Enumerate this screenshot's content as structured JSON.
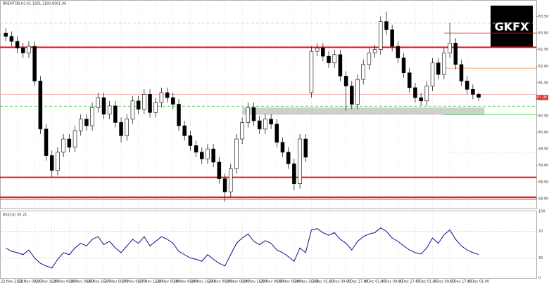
{
  "chart_data": {
    "type": "candlestick",
    "symbol": "BRENTOB,H1",
    "logo": "GKFX",
    "up_color": "#ffffff",
    "down_color": "#000000",
    "grid": true,
    "open": [
      63.0,
      62.9,
      62.75,
      62.55,
      62.4,
      62.6,
      61.55,
      60.1,
      59.3,
      58.85,
      59.4,
      59.8,
      59.55,
      60.05,
      60.4,
      60.2,
      60.75,
      61.05,
      60.55,
      60.8,
      60.3,
      59.9,
      60.4,
      60.95,
      60.7,
      61.15,
      60.6,
      60.9,
      61.2,
      61.05,
      60.85,
      60.2,
      59.9,
      59.6,
      59.4,
      59.2,
      59.5,
      59.1,
      58.6,
      58.2,
      58.9,
      59.8,
      60.3,
      60.75,
      60.35,
      60.1,
      60.4,
      60.25,
      59.7,
      59.4,
      59.05,
      58.45,
      59.8,
      61.2,
      62.45,
      62.55,
      62.3,
      62.1,
      62.35,
      61.7,
      61.4,
      60.85,
      61.6,
      62.05,
      62.4,
      62.5,
      63.35,
      63.1,
      62.6,
      62.25,
      61.8,
      61.35,
      61.05,
      60.95,
      61.4,
      62.1,
      61.75,
      62.4,
      62.7,
      62.05,
      61.55,
      61.3,
      61.15
    ],
    "high": [
      63.15,
      63.05,
      62.9,
      62.7,
      62.75,
      62.75,
      61.7,
      60.25,
      59.45,
      59.55,
      59.95,
      59.95,
      60.2,
      60.55,
      60.55,
      60.9,
      61.2,
      61.2,
      60.95,
      60.95,
      60.45,
      60.55,
      61.1,
      61.1,
      61.3,
      61.3,
      61.05,
      61.35,
      61.35,
      61.2,
      61.0,
      60.35,
      60.05,
      59.75,
      59.55,
      59.65,
      59.65,
      59.25,
      58.75,
      59.05,
      59.95,
      60.45,
      60.9,
      60.9,
      60.5,
      60.55,
      60.55,
      60.4,
      59.85,
      59.55,
      59.2,
      59.95,
      59.95,
      62.6,
      62.7,
      62.7,
      62.45,
      62.5,
      62.5,
      61.85,
      61.55,
      61.75,
      62.2,
      62.55,
      62.65,
      63.5,
      63.65,
      63.25,
      62.75,
      62.4,
      61.95,
      61.5,
      61.2,
      61.55,
      62.25,
      62.25,
      62.55,
      63.3,
      62.85,
      62.2,
      61.7,
      61.45,
      61.21
    ],
    "low": [
      62.75,
      62.6,
      62.4,
      62.25,
      62.25,
      61.4,
      59.95,
      59.15,
      58.65,
      58.7,
      59.25,
      59.4,
      59.4,
      59.9,
      60.05,
      60.05,
      60.6,
      60.4,
      60.4,
      60.15,
      59.7,
      59.75,
      60.25,
      60.55,
      60.55,
      60.45,
      60.45,
      60.75,
      60.9,
      60.7,
      60.05,
      59.75,
      59.45,
      59.25,
      59.05,
      59.05,
      58.95,
      58.45,
      57.9,
      58.05,
      58.75,
      59.65,
      60.15,
      60.2,
      59.95,
      59.95,
      60.1,
      59.55,
      59.25,
      58.9,
      58.25,
      58.3,
      59.1,
      61.05,
      62.3,
      62.15,
      61.95,
      61.95,
      61.55,
      60.65,
      60.7,
      60.7,
      61.45,
      61.9,
      62.25,
      62.35,
      62.95,
      62.45,
      62.1,
      61.65,
      61.2,
      60.9,
      60.8,
      60.8,
      61.25,
      61.6,
      61.6,
      62.25,
      61.9,
      61.4,
      61.15,
      61.0,
      60.95
    ],
    "close": [
      62.9,
      62.75,
      62.55,
      62.4,
      62.6,
      61.55,
      60.1,
      59.3,
      58.85,
      59.4,
      59.8,
      59.55,
      60.05,
      60.4,
      60.2,
      60.75,
      61.05,
      60.55,
      60.8,
      60.3,
      59.9,
      60.4,
      60.95,
      60.7,
      61.15,
      60.6,
      60.9,
      61.2,
      61.05,
      60.85,
      60.2,
      59.9,
      59.6,
      59.4,
      59.2,
      59.5,
      59.1,
      58.6,
      58.2,
      58.9,
      59.8,
      60.3,
      60.75,
      60.35,
      60.1,
      60.4,
      60.25,
      59.7,
      59.4,
      59.05,
      58.45,
      59.8,
      59.25,
      62.45,
      62.55,
      62.3,
      62.1,
      62.35,
      61.7,
      61.4,
      60.85,
      61.6,
      62.05,
      62.4,
      62.5,
      63.35,
      63.1,
      62.6,
      62.25,
      61.8,
      61.35,
      61.05,
      60.95,
      61.4,
      62.1,
      61.75,
      62.4,
      62.7,
      62.05,
      61.55,
      61.3,
      61.15,
      61.06
    ],
    "xlim": [
      -1,
      92
    ],
    "ylim": [
      57.7,
      64.0
    ],
    "yticks": [
      {
        "value": 58,
        "label": "58.00"
      },
      {
        "value": 58.5,
        "label": "58.50"
      },
      {
        "value": 59,
        "label": "59.00"
      },
      {
        "value": 59.5,
        "label": "59.50"
      },
      {
        "value": 60,
        "label": "60.00"
      },
      {
        "value": 60.5,
        "label": "60.50"
      },
      {
        "value": 61,
        "label": "61.00"
      },
      {
        "value": 61.5,
        "label": "61.50"
      },
      {
        "value": 62,
        "label": "62.00"
      },
      {
        "value": 62.5,
        "label": "62.50"
      },
      {
        "value": 63,
        "label": "63.00"
      },
      {
        "value": 63.5,
        "label": "63.50"
      }
    ],
    "xticks": [
      {
        "value": -1,
        "label": "22 Nov 2018"
      },
      {
        "value": 2,
        "label": "23 Nov 08:00"
      },
      {
        "value": 5,
        "label": "23 Nov 16:00"
      },
      {
        "value": 8,
        "label": "26 Nov 00:00"
      },
      {
        "value": 11,
        "label": "26 Nov 08:00"
      },
      {
        "value": 14,
        "label": "26 Nov 16:00"
      },
      {
        "value": 17,
        "label": "27 Nov 00:00"
      },
      {
        "value": 20,
        "label": "27 Nov 08:00"
      },
      {
        "value": 23,
        "label": "27 Nov 16:00"
      },
      {
        "value": 26,
        "label": "28 Nov 00:00"
      },
      {
        "value": 29,
        "label": "28 Nov 08:00"
      },
      {
        "value": 32,
        "label": "28 Nov 16:00"
      },
      {
        "value": 35,
        "label": "29 Nov 00:00"
      },
      {
        "value": 38,
        "label": "29 Nov 08:00"
      },
      {
        "value": 41,
        "label": "29 Nov 16:00"
      },
      {
        "value": 44,
        "label": "30 Nov 00:00"
      },
      {
        "value": 47,
        "label": "30 Nov 08:00"
      },
      {
        "value": 50,
        "label": "30 Nov 16:00"
      },
      {
        "value": 53,
        "label": "3 Dec 01:00"
      },
      {
        "value": 56,
        "label": "3 Dec 09:00"
      },
      {
        "value": 59,
        "label": "3 Dec 17:00"
      },
      {
        "value": 62,
        "label": "4 Dec 01:00"
      },
      {
        "value": 65,
        "label": "4 Dec 09:00"
      },
      {
        "value": 68,
        "label": "4 Dec 17:00"
      },
      {
        "value": 71,
        "label": "5 Dec 01:00"
      },
      {
        "value": 74,
        "label": "5 Dec 09:00"
      },
      {
        "value": 77,
        "label": "5 Dec 17:00"
      },
      {
        "value": 80,
        "label": "6 Dec 01:00"
      }
    ],
    "levels": [
      {
        "value": 63.3,
        "color": "#f7c98a",
        "dashed": true
      },
      {
        "value": 63.0,
        "color": "#e02020",
        "from": 76
      },
      {
        "value": 62.57,
        "color": "#ee1111",
        "width": 2
      },
      {
        "value": 61.94,
        "color": "#f08a4b",
        "from": 76
      },
      {
        "value": 61.15,
        "color": "#f4a0a0"
      },
      {
        "value": 60.79,
        "color": "#44cc44",
        "dashed": true
      },
      {
        "value": 60.53,
        "color": "#55dd55",
        "from": 76
      },
      {
        "value": 59.4,
        "color": "#d6ee9a",
        "dashed": true,
        "from": 76
      },
      {
        "value": 58.64,
        "color": "#ee1111",
        "width": 2
      },
      {
        "value": 58.04,
        "color": "#ee1111",
        "width": 2
      },
      {
        "value": 57.98,
        "color": "#ee1111",
        "width": 1
      }
    ],
    "zone": {
      "from": 41,
      "to": 83,
      "low": 60.53,
      "high": 60.75,
      "color": "#cfcfcf"
    },
    "rsi": {
      "name": "RSI(14)",
      "color": "#0b0b8c",
      "ylim": [
        0,
        100
      ],
      "yticks": [
        0,
        30,
        70,
        100
      ],
      "values": [
        45,
        40,
        38,
        35,
        42,
        30,
        22,
        18,
        15,
        28,
        38,
        35,
        45,
        52,
        48,
        58,
        62,
        50,
        55,
        45,
        38,
        48,
        58,
        52,
        62,
        48,
        55,
        62,
        58,
        52,
        40,
        35,
        30,
        28,
        25,
        35,
        28,
        22,
        18,
        35,
        52,
        60,
        66,
        55,
        50,
        56,
        52,
        42,
        38,
        32,
        25,
        45,
        38,
        72,
        74,
        68,
        64,
        68,
        58,
        52,
        42,
        55,
        62,
        66,
        68,
        75,
        70,
        60,
        55,
        48,
        42,
        38,
        36,
        45,
        60,
        52,
        65,
        72,
        58,
        48,
        42,
        38,
        35.21
      ]
    }
  }
}
